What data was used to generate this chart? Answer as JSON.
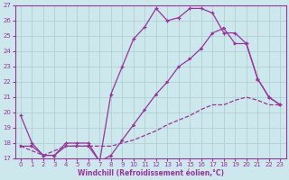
{
  "xlabel": "Windchill (Refroidissement éolien,°C)",
  "bg_color": "#cce8ec",
  "line_color": "#993399",
  "grid_color": "#aacccc",
  "xlim": [
    -0.5,
    23.5
  ],
  "ylim": [
    17,
    27
  ],
  "yticks": [
    17,
    18,
    19,
    20,
    21,
    22,
    23,
    24,
    25,
    26,
    27
  ],
  "xticks": [
    0,
    1,
    2,
    3,
    4,
    5,
    6,
    7,
    8,
    9,
    10,
    11,
    12,
    13,
    14,
    15,
    16,
    17,
    18,
    19,
    20,
    21,
    22,
    23
  ],
  "line1_x": [
    0,
    1,
    2,
    3,
    4,
    5,
    6,
    7,
    8,
    9,
    10,
    11,
    12,
    13,
    14,
    15,
    16,
    17,
    18,
    19,
    20,
    21,
    22,
    23
  ],
  "line1_y": [
    19.8,
    18.0,
    17.2,
    17.2,
    18.0,
    18.0,
    18.0,
    16.8,
    21.2,
    23.0,
    24.8,
    25.6,
    26.8,
    26.0,
    26.2,
    26.8,
    26.8,
    26.5,
    25.2,
    25.2,
    24.5,
    22.2,
    21.0,
    20.5
  ],
  "line2_x": [
    0,
    1,
    2,
    3,
    4,
    5,
    6,
    7,
    8,
    9,
    10,
    11,
    12,
    13,
    14,
    15,
    16,
    17,
    18,
    19,
    20,
    21,
    22,
    23
  ],
  "line2_y": [
    17.8,
    17.8,
    17.2,
    17.2,
    17.8,
    17.8,
    17.8,
    16.8,
    17.2,
    18.2,
    19.2,
    20.2,
    21.2,
    22.0,
    23.0,
    23.5,
    24.2,
    25.2,
    25.5,
    24.5,
    24.5,
    22.2,
    21.0,
    20.5
  ],
  "line3_x": [
    0,
    1,
    2,
    3,
    4,
    5,
    6,
    7,
    8,
    9,
    10,
    11,
    12,
    13,
    14,
    15,
    16,
    17,
    18,
    19,
    20,
    21,
    22,
    23
  ],
  "line3_y": [
    17.8,
    17.5,
    17.2,
    17.5,
    17.8,
    17.8,
    17.8,
    17.8,
    17.8,
    18.0,
    18.2,
    18.5,
    18.8,
    19.2,
    19.5,
    19.8,
    20.2,
    20.5,
    20.5,
    20.8,
    21.0,
    20.8,
    20.5,
    20.5
  ]
}
